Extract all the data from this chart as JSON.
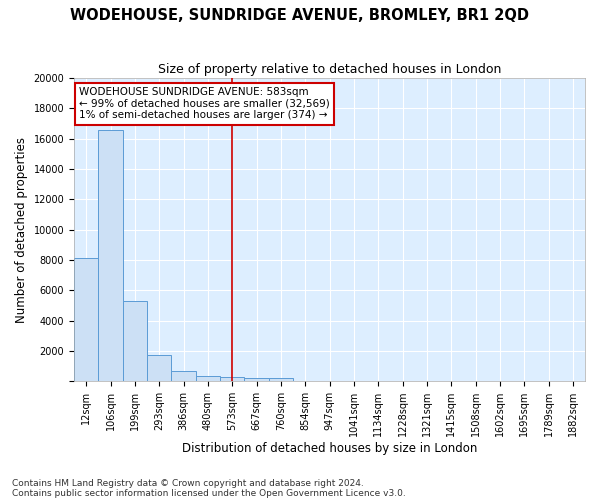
{
  "title": "WODEHOUSE, SUNDRIDGE AVENUE, BROMLEY, BR1 2QD",
  "subtitle": "Size of property relative to detached houses in London",
  "xlabel": "Distribution of detached houses by size in London",
  "ylabel": "Number of detached properties",
  "bar_color": "#cce0f5",
  "bar_edge_color": "#5b9bd5",
  "categories": [
    "12sqm",
    "106sqm",
    "199sqm",
    "293sqm",
    "386sqm",
    "480sqm",
    "573sqm",
    "667sqm",
    "760sqm",
    "854sqm",
    "947sqm",
    "1041sqm",
    "1134sqm",
    "1228sqm",
    "1321sqm",
    "1415sqm",
    "1508sqm",
    "1602sqm",
    "1695sqm",
    "1789sqm",
    "1882sqm"
  ],
  "values": [
    8100,
    16600,
    5300,
    1750,
    700,
    370,
    270,
    220,
    190,
    0,
    0,
    0,
    0,
    0,
    0,
    0,
    0,
    0,
    0,
    0,
    0
  ],
  "red_line_index": 6,
  "ylim": [
    0,
    20000
  ],
  "yticks": [
    0,
    2000,
    4000,
    6000,
    8000,
    10000,
    12000,
    14000,
    16000,
    18000,
    20000
  ],
  "annotation_title": "WODEHOUSE SUNDRIDGE AVENUE: 583sqm",
  "annotation_line1": "← 99% of detached houses are smaller (32,569)",
  "annotation_line2": "1% of semi-detached houses are larger (374) →",
  "footnote1": "Contains HM Land Registry data © Crown copyright and database right 2024.",
  "footnote2": "Contains public sector information licensed under the Open Government Licence v3.0.",
  "background_color": "#ddeeff",
  "fig_background": "#ffffff",
  "grid_color": "#ffffff",
  "title_fontsize": 10.5,
  "subtitle_fontsize": 9,
  "axis_label_fontsize": 8.5,
  "tick_fontsize": 7,
  "annotation_box_color": "#ffffff",
  "annotation_border_color": "#cc0000",
  "red_line_color": "#cc0000",
  "footnote_fontsize": 6.5
}
